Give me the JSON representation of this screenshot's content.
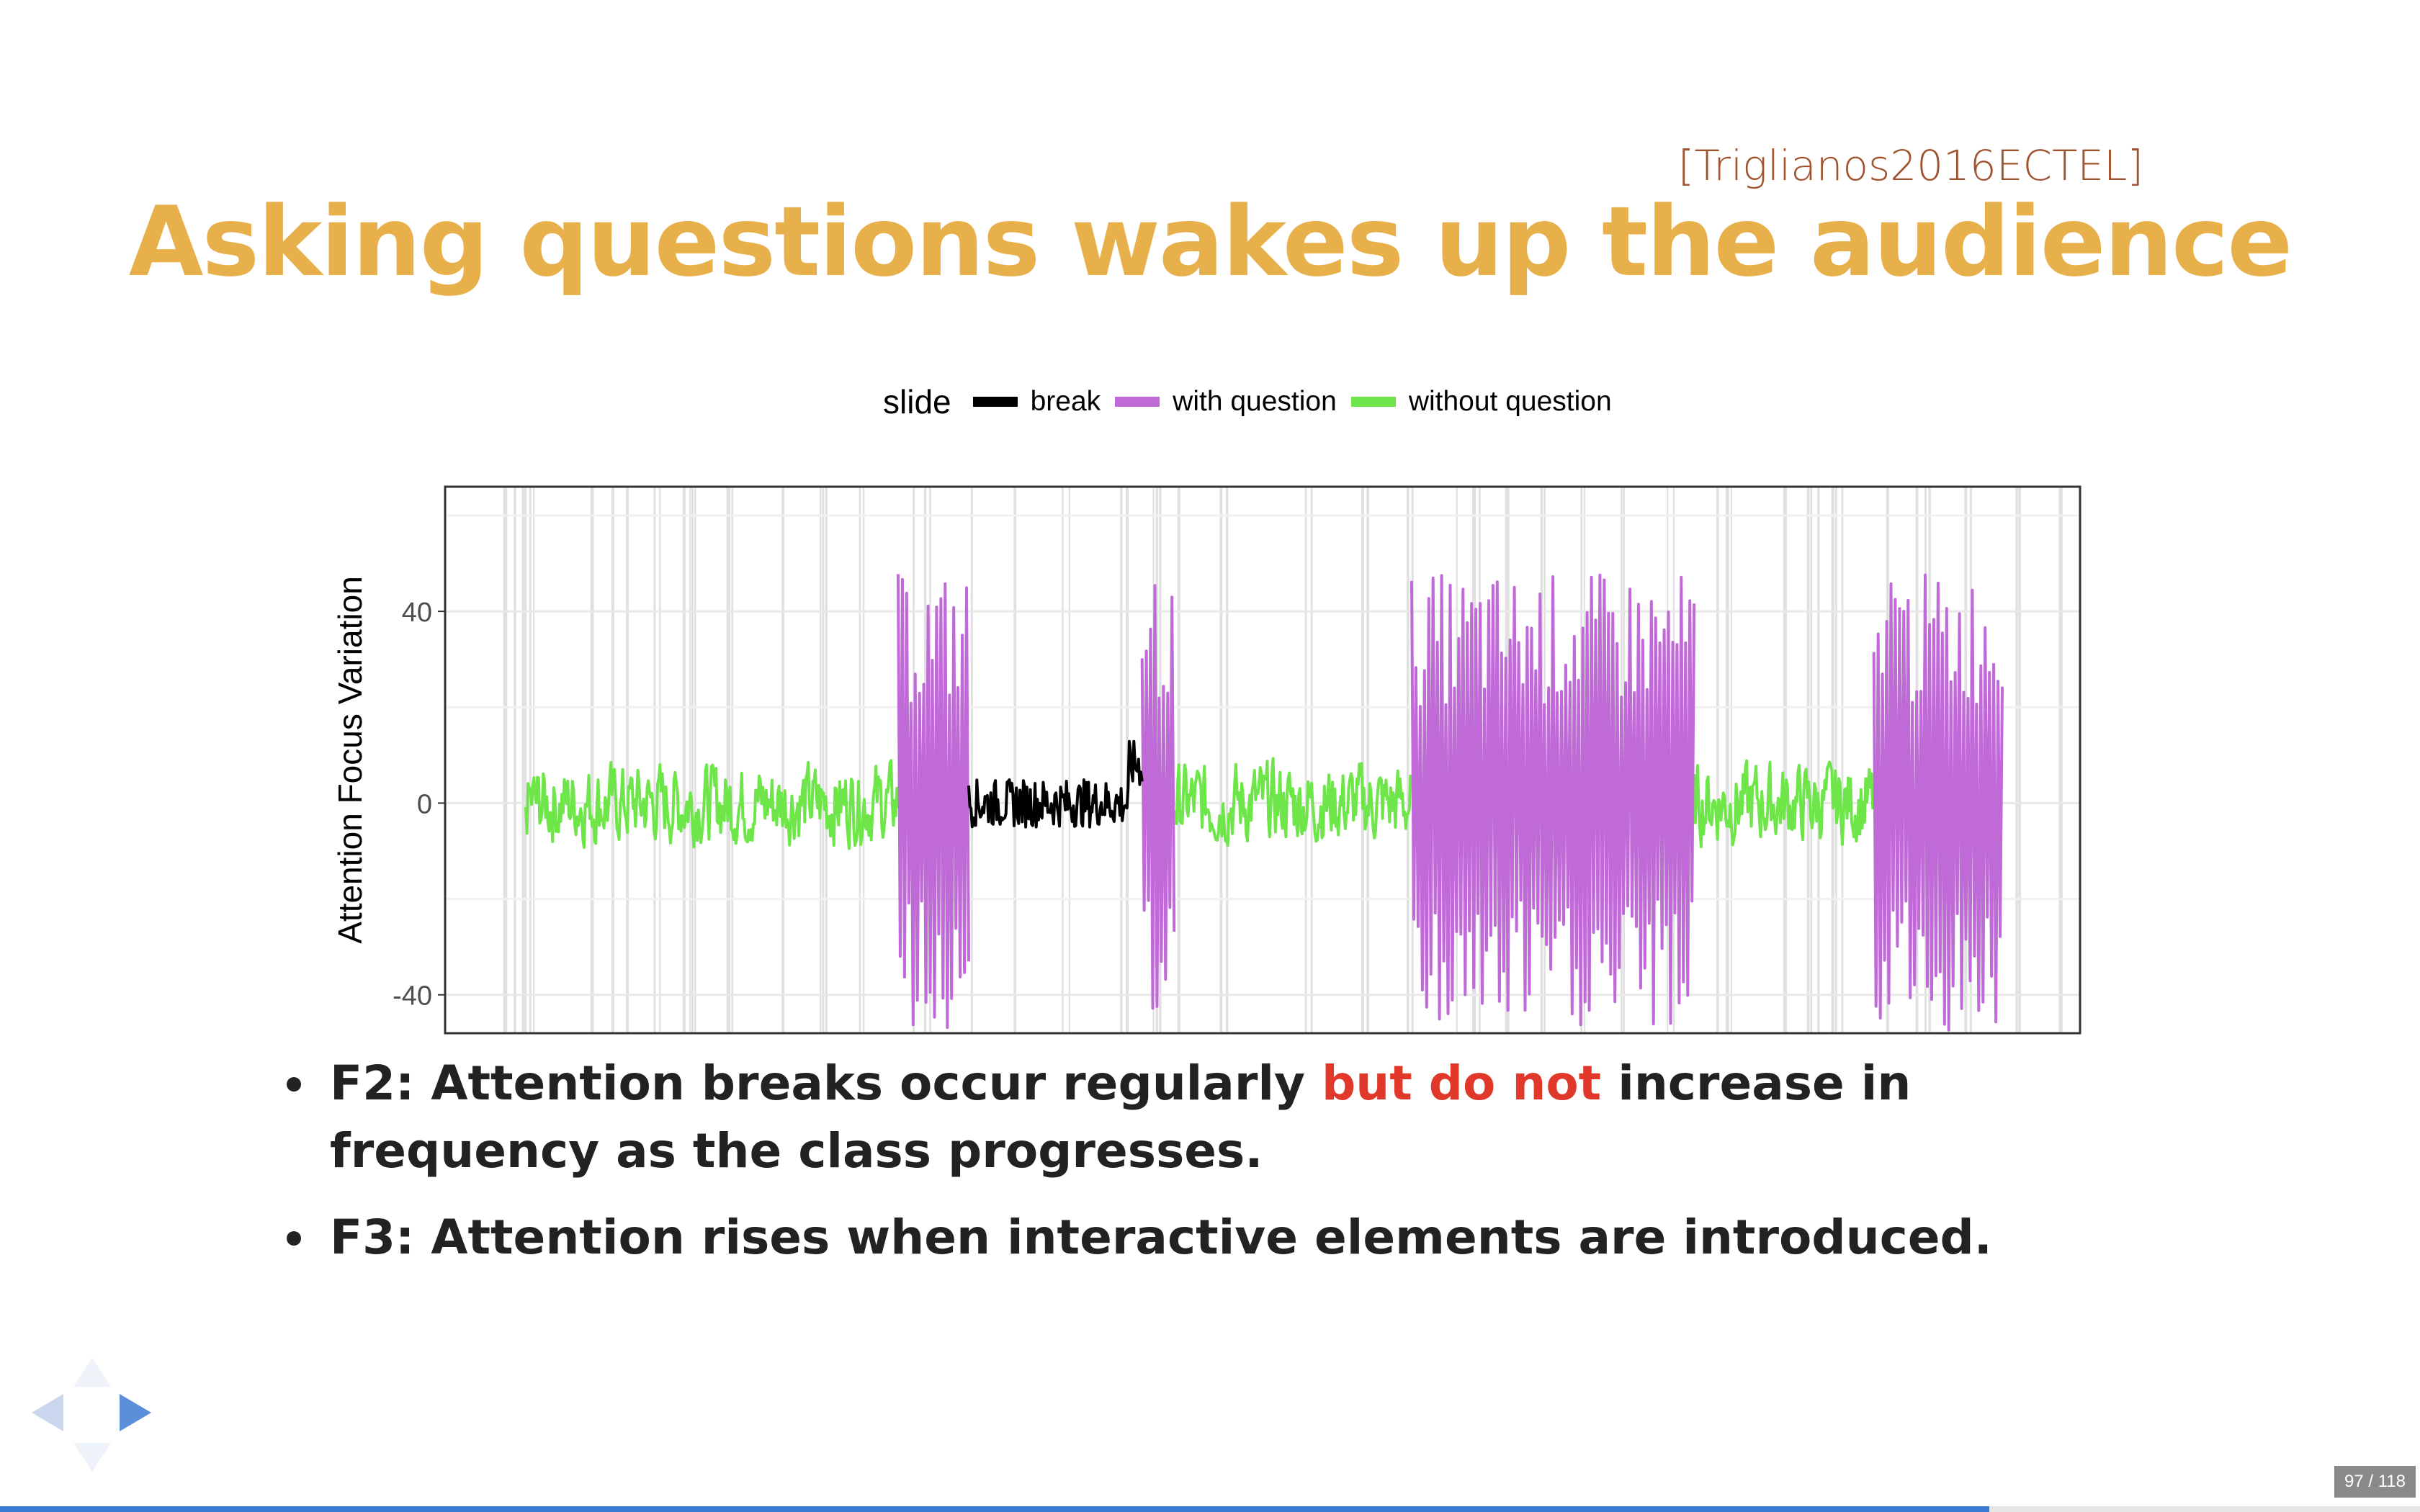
{
  "slide": {
    "citation": "[Triglianos2016ECTEL]",
    "title": "Asking questions wakes up the audience"
  },
  "legend": {
    "title": "slide",
    "items": [
      {
        "label": "break",
        "color": "#000000"
      },
      {
        "label": "with question",
        "color": "#c06ad8"
      },
      {
        "label": "without question",
        "color": "#6ee64a"
      }
    ]
  },
  "chart_data": {
    "type": "line",
    "ylabel": "Attention Focus Variation",
    "xlabel": "",
    "yticks": [
      "40",
      "0",
      "-40"
    ],
    "ylim": [
      -48,
      66
    ],
    "xlim": [
      0,
      1000
    ],
    "grid": true,
    "legend_position": "top",
    "series": [
      {
        "name": "without question",
        "color": "#6ee64a",
        "segments": [
          [
            50,
            340
          ],
          [
            555,
            740
          ],
          [
            960,
            1100
          ]
        ]
      },
      {
        "name": "with question",
        "color": "#c06ad8",
        "segments": [
          [
            340,
            395
          ],
          [
            530,
            555
          ],
          [
            740,
            960
          ],
          [
            1100,
            1120
          ],
          [
            1120,
            1200
          ]
        ]
      },
      {
        "name": "break",
        "color": "#000000",
        "segments": [
          [
            395,
            530
          ]
        ]
      }
    ]
  },
  "bullets": [
    {
      "before": "F2: Attention breaks occur regularly ",
      "highlight": "but do not",
      "after": " increase in frequency as the class progresses."
    },
    {
      "before": "F3: Attention rises when interactive elements are introduced.",
      "highlight": "",
      "after": ""
    }
  ],
  "nav": {
    "counter": "97 / 118",
    "progress": 0.822
  }
}
